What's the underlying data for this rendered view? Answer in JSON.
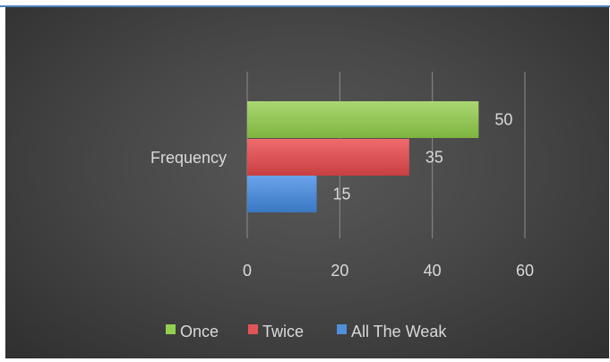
{
  "chart_data": {
    "type": "bar",
    "orientation": "horizontal",
    "title": "",
    "xlabel": "",
    "ylabel": "",
    "categories": [
      "Frequency"
    ],
    "series": [
      {
        "name": "Once",
        "values": [
          50
        ],
        "color": "#92d050"
      },
      {
        "name": "Twice",
        "values": [
          35
        ],
        "color": "#e25457"
      },
      {
        "name": "All The Weak",
        "values": [
          15
        ],
        "color": "#4f8fdb"
      }
    ],
    "xlim": [
      0,
      60
    ],
    "xticks": [
      "0",
      "20",
      "40",
      "60"
    ],
    "grid": true,
    "data_labels": true,
    "legend_position": "bottom"
  }
}
